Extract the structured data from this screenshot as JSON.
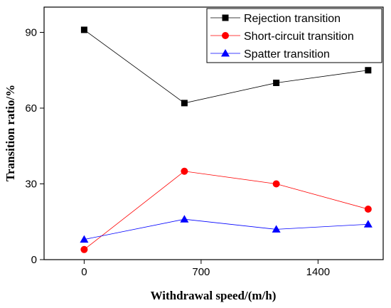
{
  "chart_data": {
    "type": "line",
    "title": "",
    "xlabel": "Withdrawal speed/(m/h)",
    "ylabel": "Transition ratio/%",
    "xlim": [
      -240,
      1790
    ],
    "ylim": [
      0,
      100
    ],
    "x_ticks": [
      0,
      700,
      1400
    ],
    "x_tick_labels": [
      "0",
      "700",
      "1400"
    ],
    "y_ticks": [
      0,
      30,
      60,
      90
    ],
    "y_tick_labels": [
      "0",
      "30",
      "60",
      "90"
    ],
    "grid": false,
    "legend_position": "top-right",
    "series": [
      {
        "name": "Rejection transition",
        "color": "#000000",
        "marker": "square",
        "x": [
          0,
          600,
          1150,
          1700
        ],
        "y": [
          91,
          62,
          70,
          75
        ]
      },
      {
        "name": "Short-circuit transition",
        "color": "#ff0000",
        "marker": "circle",
        "x": [
          0,
          600,
          1150,
          1700
        ],
        "y": [
          4,
          35,
          30,
          20
        ]
      },
      {
        "name": "Spatter transition",
        "color": "#0000ff",
        "marker": "triangle",
        "x": [
          0,
          600,
          1150,
          1700
        ],
        "y": [
          8,
          16,
          12,
          14
        ]
      }
    ]
  }
}
